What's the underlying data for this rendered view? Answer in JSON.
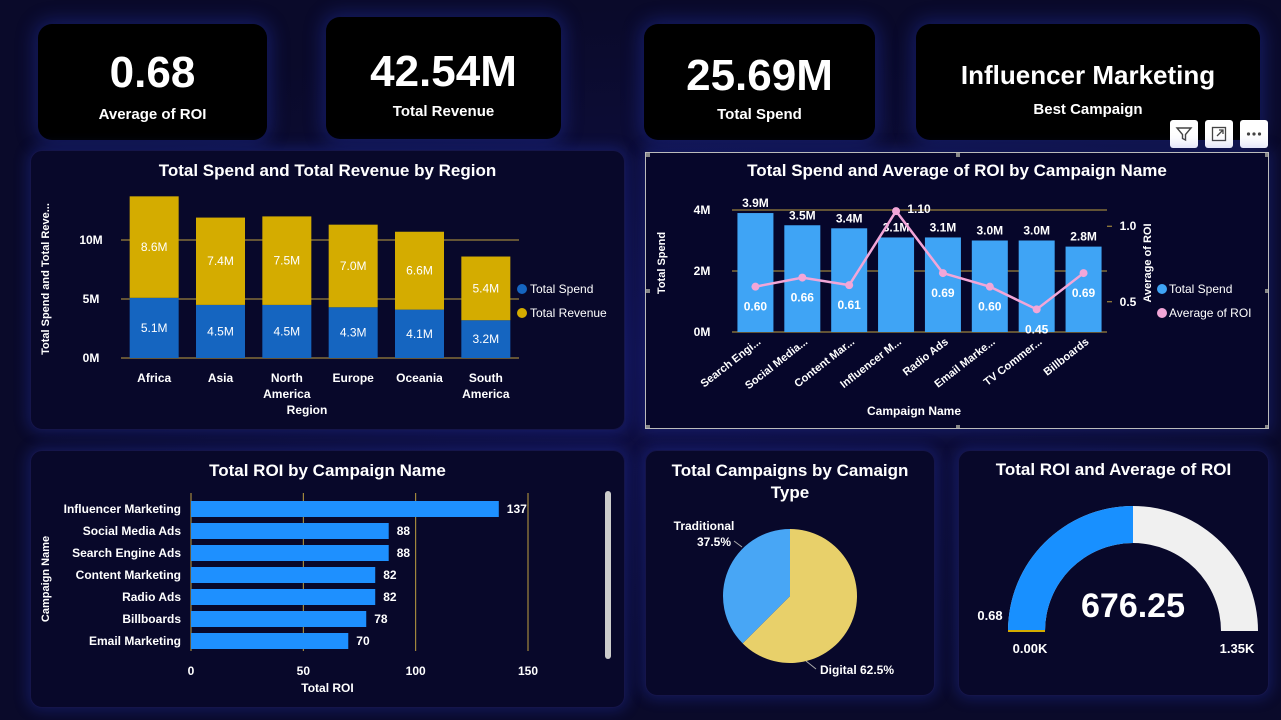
{
  "kpis": [
    {
      "value": "0.68",
      "label": "Average of ROI"
    },
    {
      "value": "42.54M",
      "label": "Total Revenue"
    },
    {
      "value": "25.69M",
      "label": "Total Spend"
    },
    {
      "value": "Influencer Marketing",
      "label": "Best Campaign"
    }
  ],
  "colors": {
    "spend": "#1565c0",
    "revenue": "#d4ac00",
    "bar_blue": "#3fa4f5",
    "roi_line": "#f2a6d8",
    "hbar": "#1e90ff",
    "pie_traditional": "#48a6f5",
    "pie_digital": "#e8d06a",
    "gauge_fill": "#1890ff",
    "gauge_bg": "#f0f0f0",
    "gridline": "#bfa040"
  },
  "toolbar_icons": [
    "filter-icon",
    "focus-mode-icon",
    "more-options-icon"
  ],
  "chart_data": [
    {
      "type": "bar",
      "stacked": true,
      "title": "Total Spend and Total Revenue by Region",
      "xlabel": "Region",
      "ylabel": "Total Spend and Total Reve...",
      "categories": [
        "Africa",
        "Asia",
        "North America",
        "Europe",
        "Oceania",
        "South America"
      ],
      "series": [
        {
          "name": "Total Spend",
          "values": [
            5.1,
            4.5,
            4.5,
            4.3,
            4.1,
            3.2
          ],
          "labels": [
            "5.1M",
            "4.5M",
            "4.5M",
            "4.3M",
            "4.1M",
            "3.2M"
          ]
        },
        {
          "name": "Total Revenue",
          "values": [
            8.6,
            7.4,
            7.5,
            7.0,
            6.6,
            5.4
          ],
          "labels": [
            "8.6M",
            "7.4M",
            "7.5M",
            "7.0M",
            "6.6M",
            "5.4M"
          ]
        }
      ],
      "yticks": [
        "0M",
        "5M",
        "10M"
      ],
      "ylim": [
        0,
        15
      ],
      "legend": "right"
    },
    {
      "type": "bar",
      "combo_line": true,
      "title": "Total Spend and Average of ROI by Campaign Name",
      "xlabel": "Campaign Name",
      "ylabel": "Total Spend",
      "y2label": "Average of ROI",
      "categories": [
        "Search Engi...",
        "Social Media...",
        "Content Mar...",
        "Influencer M...",
        "Radio Ads",
        "Email Marke...",
        "TV Commer...",
        "Billboards"
      ],
      "series": [
        {
          "name": "Total Spend",
          "values": [
            3.9,
            3.5,
            3.4,
            3.1,
            3.1,
            3.0,
            3.0,
            2.8
          ],
          "labels": [
            "3.9M",
            "3.5M",
            "3.4M",
            "3.1M",
            "3.1M",
            "3.0M",
            "3.0M",
            "2.8M"
          ]
        },
        {
          "name": "Average of ROI",
          "values": [
            0.6,
            0.66,
            0.61,
            1.1,
            0.69,
            0.6,
            0.45,
            0.69
          ],
          "labels": [
            "0.60",
            "0.66",
            "0.61",
            "1.10",
            "0.69",
            "0.60",
            "0.45",
            "0.69"
          ]
        }
      ],
      "yticks": [
        "0M",
        "2M",
        "4M"
      ],
      "ylim": [
        0,
        4
      ],
      "y2ticks": [
        "0.5",
        "1.0"
      ],
      "y2lim": [
        0.3,
        1.2
      ],
      "legend": "right"
    },
    {
      "type": "bar",
      "orientation": "horizontal",
      "title": "Total ROI by Campaign Name",
      "xlabel": "Total ROI",
      "ylabel": "Campaign Name",
      "categories": [
        "Influencer Marketing",
        "Social Media Ads",
        "Search Engine Ads",
        "Content Marketing",
        "Radio Ads",
        "Billboards",
        "Email Marketing"
      ],
      "values": [
        137,
        88,
        88,
        82,
        82,
        78,
        70
      ],
      "xticks": [
        "0",
        "50",
        "100",
        "150"
      ],
      "xlim": [
        0,
        150
      ]
    },
    {
      "type": "pie",
      "title": "Total Campaigns by Camaign Type",
      "slices": [
        {
          "name": "Traditional",
          "value": 37.5,
          "label": "37.5%"
        },
        {
          "name": "Digital",
          "value": 62.5,
          "label": "Digital 62.5%"
        }
      ]
    },
    {
      "type": "gauge",
      "title": "Total ROI and Average of ROI",
      "value": 676.25,
      "value_label": "676.25",
      "min_label": "0.00K",
      "max_label": "1.35K",
      "target_label": "0.68",
      "min": 0,
      "max": 1352.5
    }
  ]
}
